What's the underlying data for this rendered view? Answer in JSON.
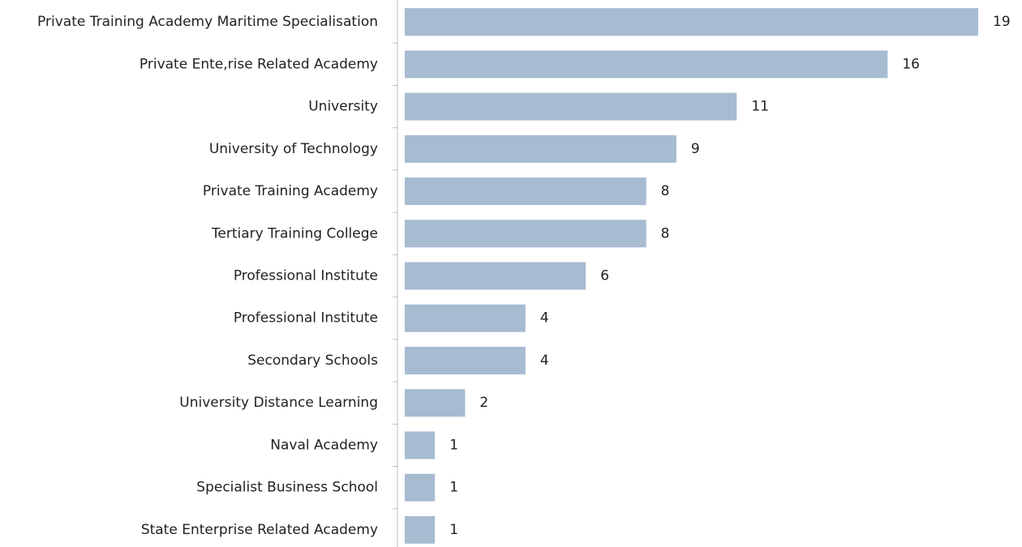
{
  "chart_data": {
    "type": "bar",
    "orientation": "horizontal",
    "categories": [
      "Private Training Academy Maritime Specialisation",
      "Private Ente,rise Related Academy",
      "University",
      "University of Technology",
      "Private Training Academy",
      "Tertiary Training College",
      "Professional Institute",
      "Professional Institute",
      "Secondary Schools",
      "University Distance Learning",
      "Naval Academy",
      "Specialist Business School",
      "State Enterprise Related Academy"
    ],
    "values": [
      19,
      16,
      11,
      9,
      8,
      8,
      6,
      4,
      4,
      2,
      1,
      1,
      1
    ],
    "color": "#a7bbd1"
  }
}
